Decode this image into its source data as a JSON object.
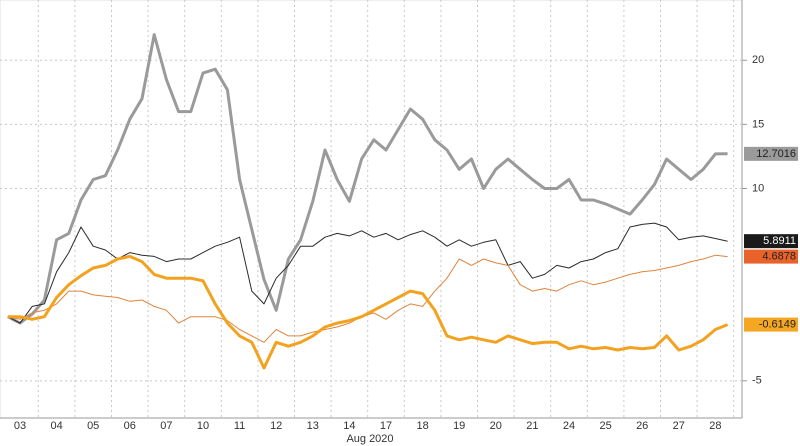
{
  "chart_data": {
    "type": "line",
    "xlabel": "Aug 2020",
    "categories": [
      null,
      "03",
      null,
      null,
      "04",
      null,
      null,
      "05",
      null,
      null,
      "06",
      null,
      null,
      "07",
      null,
      null,
      "10",
      null,
      null,
      "11",
      null,
      null,
      "12",
      null,
      null,
      "13",
      null,
      null,
      "14",
      null,
      null,
      "17",
      null,
      null,
      "18",
      null,
      null,
      "19",
      null,
      null,
      "20",
      null,
      null,
      "21",
      null,
      null,
      "24",
      null,
      null,
      "25",
      null,
      null,
      "26",
      null,
      null,
      "27",
      null,
      null,
      "28",
      null
    ],
    "ylim": [
      -7.9,
      24.7
    ],
    "yticks": [
      -5,
      10,
      15,
      20
    ],
    "grid": true,
    "series": [
      {
        "color": "#9a9a9a",
        "line_width": 3,
        "label_fill": "#9a9a9a",
        "label_text": "#222",
        "values": [
          0,
          -0.5,
          0.2,
          1.3,
          6,
          6.5,
          9.1,
          10.7,
          11,
          13,
          15.4,
          17,
          22,
          18.5,
          16,
          16,
          19,
          19.3,
          17.7,
          10.7,
          6.8,
          2.9,
          0.5,
          4.5,
          6,
          9,
          13,
          10.7,
          9,
          12.3,
          13.8,
          13,
          14.6,
          16.2,
          15.4,
          13.8,
          13,
          11.5,
          12.3,
          10,
          11.5,
          12.3,
          11.5,
          10.7,
          10,
          10,
          10.7,
          9.1,
          9.1,
          8.8,
          8.4,
          8,
          9.1,
          10.3,
          12.3,
          11.5,
          10.7,
          11.5,
          12.7,
          12.7016
        ]
      },
      {
        "color": "#2b2b2b",
        "line_width": 1,
        "label_fill": "#1a1a1a",
        "label_text": "#fff",
        "values": [
          0,
          -0.5,
          0.8,
          1,
          3.5,
          5,
          7,
          5.5,
          5.2,
          4.5,
          5,
          4.8,
          4.7,
          4.3,
          4.5,
          4.5,
          5,
          5.5,
          5.8,
          6.2,
          2,
          1,
          3,
          4,
          5.5,
          5.5,
          6.2,
          6.5,
          6.3,
          6.7,
          6.2,
          6.5,
          6,
          6.4,
          6.7,
          6.2,
          5.5,
          6,
          5.5,
          5.8,
          6,
          4,
          4.3,
          3,
          3.3,
          4,
          3.8,
          4.3,
          4.5,
          5,
          5.3,
          7,
          7.2,
          7.3,
          7,
          6,
          6.2,
          6.3,
          6.1,
          5.8911
        ]
      },
      {
        "color": "#e0843c",
        "line_width": 1,
        "label_fill": "#e8622a",
        "label_text": "#222",
        "values": [
          0,
          -0.2,
          0.3,
          0.5,
          1,
          2,
          2,
          1.7,
          1.6,
          1.5,
          1.2,
          1.3,
          0.8,
          0.5,
          -0.5,
          0,
          0,
          0,
          -0.3,
          -1,
          -1.5,
          -2,
          -1,
          -1.5,
          -1.5,
          -1.2,
          -1,
          -0.8,
          -0.5,
          0,
          0.3,
          -0.2,
          0.5,
          1,
          0.8,
          2,
          3,
          4.5,
          4,
          4.5,
          4.2,
          4,
          2.5,
          2,
          2.2,
          2,
          2.5,
          2.8,
          2.5,
          2.7,
          3,
          3.3,
          3.5,
          3.6,
          3.8,
          4,
          4.3,
          4.5,
          4.8,
          4.6878
        ]
      },
      {
        "color": "#f2a21f",
        "line_width": 3,
        "label_fill": "#f5a623",
        "label_text": "#222",
        "values": [
          0,
          0,
          -0.2,
          0,
          1.5,
          2.5,
          3.2,
          3.8,
          4,
          4.5,
          4.7,
          4.3,
          3.3,
          3,
          3,
          3,
          2.8,
          1,
          -0.5,
          -1.5,
          -2,
          -4,
          -2,
          -2.3,
          -2,
          -1.5,
          -0.8,
          -0.5,
          -0.3,
          0,
          0.5,
          1,
          1.5,
          2,
          1.8,
          0.5,
          -1.5,
          -1.8,
          -1.6,
          -1.8,
          -2,
          -1.5,
          -1.8,
          -2.1,
          -2,
          -2,
          -2.5,
          -2.3,
          -2.5,
          -2.4,
          -2.6,
          -2.4,
          -2.5,
          -2.4,
          -1.5,
          -2.6,
          -2.3,
          -1.8,
          -1,
          -0.6149
        ]
      }
    ]
  }
}
